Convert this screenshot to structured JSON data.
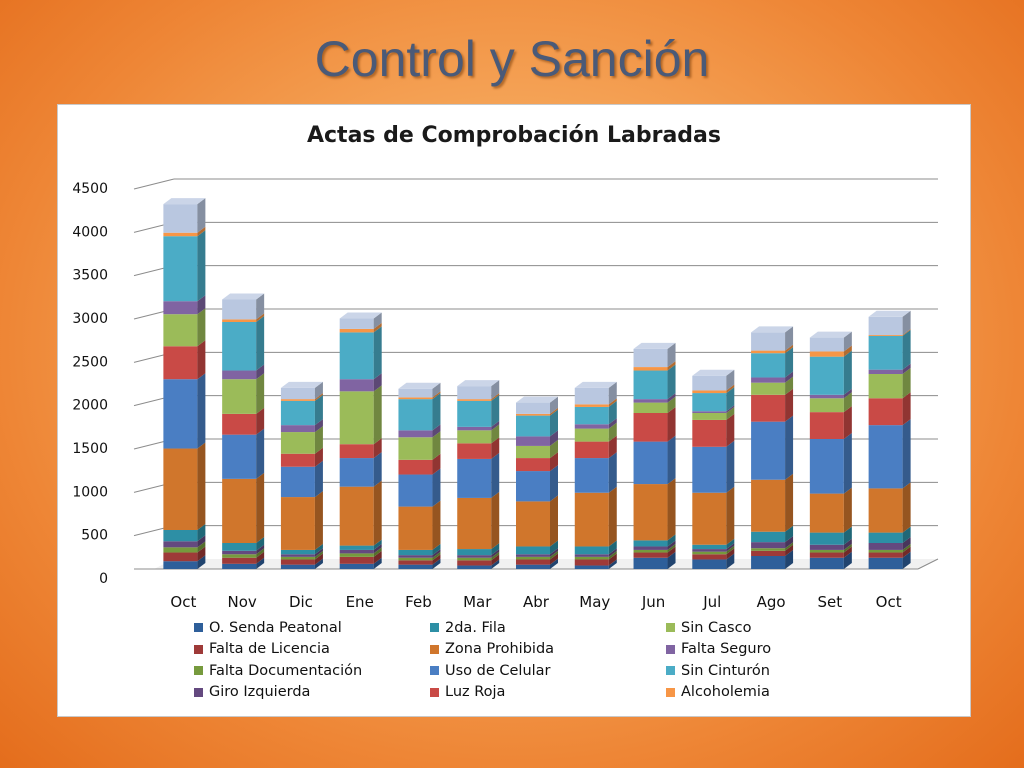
{
  "slide": {
    "title": "Control y Sanción"
  },
  "chart_data": {
    "type": "bar",
    "stacked": true,
    "title": "Actas de Comprobación Labradas",
    "categories": [
      "Oct",
      "Nov",
      "Dic",
      "Ene",
      "Feb",
      "Mar",
      "Abr",
      "May",
      "Jun",
      "Jul",
      "Ago",
      "Set",
      "Oct"
    ],
    "ylim": [
      0,
      4500
    ],
    "yticks": [
      0,
      500,
      1000,
      1500,
      2000,
      2500,
      3000,
      3500,
      4000,
      4500
    ],
    "grid": true,
    "legend": "bottom",
    "series": [
      {
        "name": "O. Senda Peatonal",
        "color": "#2e5f9a",
        "values": [
          90,
          60,
          50,
          60,
          50,
          40,
          50,
          40,
          130,
          110,
          150,
          130,
          130
        ]
      },
      {
        "name": "Falta de Licencia",
        "color": "#9e3a38",
        "values": [
          100,
          70,
          60,
          80,
          50,
          60,
          60,
          70,
          60,
          60,
          60,
          60,
          60
        ]
      },
      {
        "name": "Falta Documentación",
        "color": "#769a3d",
        "values": [
          60,
          40,
          30,
          40,
          30,
          30,
          30,
          30,
          30,
          30,
          30,
          30,
          30
        ]
      },
      {
        "name": "Giro Izquierda",
        "color": "#64497f",
        "values": [
          70,
          40,
          30,
          40,
          30,
          30,
          30,
          30,
          40,
          30,
          70,
          60,
          80
        ]
      },
      {
        "name": "2da. Fila",
        "color": "#2d8fa5",
        "values": [
          130,
          90,
          50,
          50,
          60,
          70,
          90,
          90,
          70,
          50,
          120,
          140,
          120
        ]
      },
      {
        "name": "Zona Prohibida",
        "color": "#d0762c",
        "values": [
          940,
          740,
          610,
          680,
          500,
          590,
          520,
          620,
          650,
          600,
          600,
          450,
          510
        ]
      },
      {
        "name": "Uso de Celular",
        "color": "#4a7ec3",
        "values": [
          800,
          510,
          350,
          330,
          370,
          450,
          350,
          400,
          490,
          530,
          670,
          630,
          730
        ]
      },
      {
        "name": "Luz Roja",
        "color": "#c94a46",
        "values": [
          380,
          240,
          150,
          160,
          170,
          180,
          150,
          190,
          330,
          310,
          310,
          310,
          310
        ]
      },
      {
        "name": "Sin Casco",
        "color": "#9bbb59",
        "values": [
          370,
          400,
          250,
          610,
          260,
          150,
          140,
          150,
          120,
          80,
          140,
          160,
          280
        ]
      },
      {
        "name": "Falta Seguro",
        "color": "#8064a2",
        "values": [
          150,
          100,
          80,
          140,
          80,
          40,
          110,
          50,
          40,
          20,
          60,
          40,
          50
        ]
      },
      {
        "name": "Sin Cinturón",
        "color": "#4bacc6",
        "values": [
          750,
          560,
          280,
          540,
          360,
          300,
          240,
          200,
          330,
          210,
          280,
          440,
          390
        ]
      },
      {
        "name": "Alcoholemia",
        "color": "#f79646",
        "values": [
          40,
          30,
          20,
          40,
          20,
          20,
          20,
          30,
          40,
          30,
          30,
          60,
          10
        ]
      },
      {
        "name": "",
        "color": "#b9c7e0",
        "values": [
          330,
          230,
          130,
          120,
          100,
          150,
          130,
          190,
          210,
          170,
          210,
          160,
          210
        ]
      }
    ]
  }
}
